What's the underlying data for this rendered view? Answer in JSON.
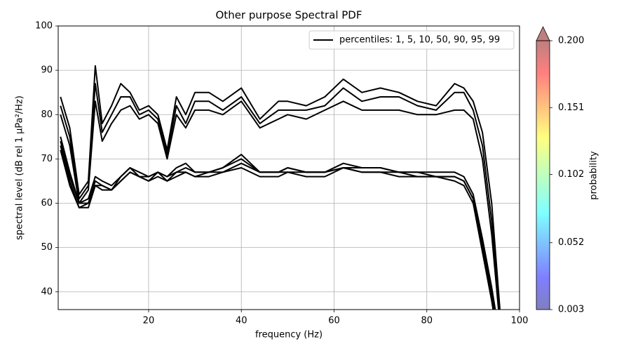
{
  "chart_data": {
    "type": "line",
    "title": "Other purpose Spectral PDF",
    "xlabel": "frequency (Hz)",
    "ylabel": "spectral level (dB rel 1 µPa²/Hz)",
    "legend": "percentiles: 1, 5, 10, 50, 90, 95, 99",
    "legend_loc": "upper right",
    "grid": true,
    "xlim": [
      0.5,
      100
    ],
    "xticks": [
      20,
      40,
      60,
      80,
      100
    ],
    "ylim": [
      36,
      100
    ],
    "yticks": [
      40,
      50,
      60,
      70,
      80,
      90,
      100
    ],
    "x": [
      1,
      3,
      5,
      7,
      8.5,
      10,
      12,
      14,
      16,
      18,
      20,
      22,
      24,
      26,
      28,
      30,
      33,
      36,
      40,
      44,
      48,
      50,
      54,
      58,
      62,
      66,
      70,
      74,
      78,
      82,
      86,
      88,
      90,
      92,
      94,
      96
    ],
    "series": [
      {
        "color": "#000000",
        "values": [
          84,
          77,
          62,
          65,
          91,
          78,
          82,
          87,
          85,
          81,
          82,
          80,
          72,
          84,
          80,
          85,
          85,
          83,
          86,
          79,
          83,
          83,
          82,
          84,
          88,
          85,
          86,
          85,
          83,
          82,
          87,
          86,
          83,
          76,
          60,
          33
        ]
      },
      {
        "color": "#000000",
        "values": [
          82,
          75,
          61,
          64,
          87,
          76,
          80,
          84,
          84,
          80,
          81,
          79,
          71,
          82,
          78,
          83,
          83,
          81,
          84,
          78,
          81,
          81,
          81,
          82,
          86,
          83,
          84,
          84,
          82,
          81,
          85,
          85,
          81,
          73,
          56,
          31
        ]
      },
      {
        "color": "#000000",
        "values": [
          80,
          73,
          60,
          63,
          83,
          74,
          78,
          81,
          82,
          79,
          80,
          78,
          70,
          80,
          77,
          81,
          81,
          80,
          83,
          77,
          79,
          80,
          79,
          81,
          83,
          81,
          81,
          81,
          80,
          80,
          81,
          81,
          79,
          70,
          53,
          30
        ]
      },
      {
        "color": "#000000",
        "values": [
          75,
          67,
          60,
          61,
          66,
          65,
          64,
          66,
          68,
          67,
          66,
          67,
          66,
          68,
          69,
          67,
          67,
          68,
          71,
          67,
          67,
          68,
          67,
          67,
          69,
          68,
          68,
          67,
          67,
          67,
          67,
          66,
          62,
          52,
          41,
          28
        ]
      },
      {
        "color": "#000000",
        "values": [
          74,
          66,
          60,
          60,
          65,
          64,
          63,
          66,
          68,
          66,
          66,
          67,
          66,
          67,
          68,
          67,
          67,
          68,
          70,
          67,
          67,
          68,
          67,
          67,
          68,
          68,
          68,
          67,
          67,
          66,
          66,
          65,
          61,
          51,
          40,
          27
        ]
      },
      {
        "color": "#000000",
        "values": [
          73,
          65,
          59,
          60,
          64,
          64,
          63,
          65,
          67,
          66,
          65,
          67,
          65,
          67,
          67,
          66,
          67,
          67,
          69,
          67,
          67,
          67,
          67,
          67,
          68,
          67,
          67,
          67,
          66,
          66,
          66,
          65,
          61,
          50,
          39,
          26
        ]
      },
      {
        "color": "#000000",
        "values": [
          72,
          64,
          59,
          59,
          64,
          63,
          63,
          65,
          67,
          66,
          65,
          66,
          65,
          66,
          67,
          66,
          66,
          67,
          68,
          66,
          66,
          67,
          66,
          66,
          68,
          67,
          67,
          66,
          66,
          66,
          65,
          64,
          60,
          49,
          38,
          25
        ]
      }
    ],
    "colorbar": {
      "label": "probability",
      "lim": [
        0.003,
        0.2
      ],
      "ticks": [
        0.003,
        0.052,
        0.102,
        0.151,
        0.2
      ],
      "tick_labels": [
        "0.003",
        "0.052",
        "0.102",
        "0.151",
        "0.200"
      ]
    }
  }
}
